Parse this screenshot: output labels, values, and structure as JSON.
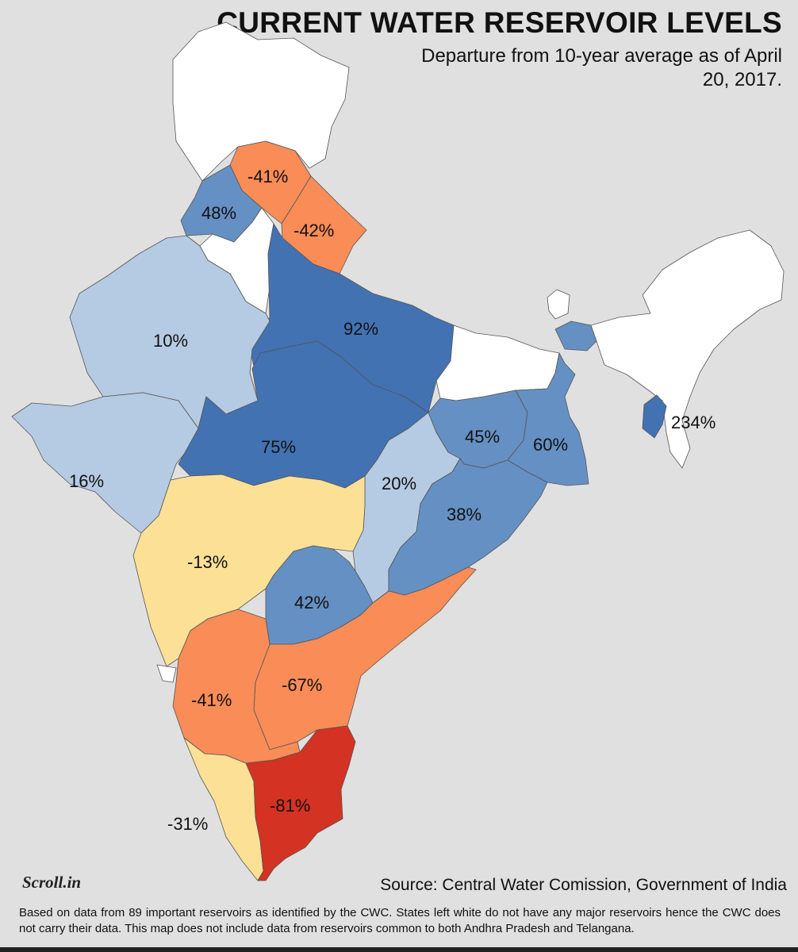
{
  "title": "CURRENT WATER RESERVOIR LEVELS",
  "subtitle": "Departure from 10-year average as of April 20, 2017.",
  "colors": {
    "background": "#e0e0e0",
    "no_data": "#ffffff",
    "very_high": "#4372b3",
    "high": "#6590c4",
    "mid": "#b5cbe3",
    "low": "#fbe096",
    "negative": "#f98c57",
    "very_negative": "#d43222"
  },
  "regions": [
    {
      "name": "Jammu & Kashmir",
      "value": "",
      "color": "#ffffff"
    },
    {
      "name": "Himachal Pradesh",
      "value": "-41%",
      "color": "#f98c57"
    },
    {
      "name": "Punjab",
      "value": "48%",
      "color": "#6590c4"
    },
    {
      "name": "Uttarakhand",
      "value": "-42%",
      "color": "#f98c57"
    },
    {
      "name": "Haryana",
      "value": "",
      "color": "#ffffff"
    },
    {
      "name": "Uttar Pradesh",
      "value": "92%",
      "color": "#4372b3"
    },
    {
      "name": "Rajasthan",
      "value": "10%",
      "color": "#b5cbe3"
    },
    {
      "name": "Gujarat",
      "value": "16%",
      "color": "#b5cbe3"
    },
    {
      "name": "Madhya Pradesh",
      "value": "75%",
      "color": "#4372b3"
    },
    {
      "name": "Bihar",
      "value": "",
      "color": "#ffffff"
    },
    {
      "name": "Jharkhand",
      "value": "45%",
      "color": "#6590c4"
    },
    {
      "name": "West Bengal",
      "value": "60%",
      "color": "#6590c4"
    },
    {
      "name": "Sikkim",
      "value": "",
      "color": "#6590c4"
    },
    {
      "name": "Chhattisgarh",
      "value": "20%",
      "color": "#b5cbe3"
    },
    {
      "name": "Odisha",
      "value": "38%",
      "color": "#6590c4"
    },
    {
      "name": "Maharashtra",
      "value": "-13%",
      "color": "#fbe096"
    },
    {
      "name": "Telangana",
      "value": "42%",
      "color": "#6590c4"
    },
    {
      "name": "Andhra Pradesh",
      "value": "-67%",
      "color": "#f98c57"
    },
    {
      "name": "Karnataka",
      "value": "-41%",
      "color": "#f98c57"
    },
    {
      "name": "Goa",
      "value": "",
      "color": "#ffffff"
    },
    {
      "name": "Kerala",
      "value": "-31%",
      "color": "#fbe096"
    },
    {
      "name": "Tamil Nadu",
      "value": "-81%",
      "color": "#d43222"
    },
    {
      "name": "North East",
      "value": "",
      "color": "#ffffff"
    },
    {
      "name": "Tripura",
      "value": "234%",
      "color": "#4372b3"
    }
  ],
  "logo": "Scroll.in",
  "source": "Source: Central Water Comission, Government of India",
  "footnote": "Based on data from 89 important reservoirs as identified by the CWC. States left white do not have any major reservoirs hence the CWC does not carry their data. This map does not include data from reservoirs common to both Andhra Pradesh and Telangana."
}
